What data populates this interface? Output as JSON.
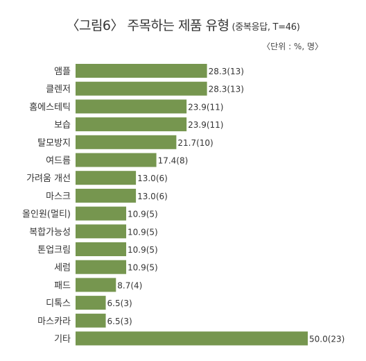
{
  "title": "〈그림6〉 주목하는 제품 유형",
  "title_note": "(중복응답, T=46)",
  "unit_note": "〈단위 : %, 명〉",
  "colors": {
    "bar": "#76964f",
    "text": "#333333"
  },
  "chart_data": {
    "type": "bar",
    "orientation": "horizontal",
    "title": "〈그림6〉 주목하는 제품 유형",
    "categories": [
      "앰플",
      "클렌저",
      "홈에스테틱",
      "보습",
      "탈모방지",
      "여드름",
      "가려움 개선",
      "마스크",
      "올인원(멀티)",
      "복합가능성",
      "톤업크림",
      "세럼",
      "패드",
      "디톡스",
      "마스카라",
      "기타"
    ],
    "values": [
      28.3,
      28.3,
      23.9,
      23.9,
      21.7,
      17.4,
      13.0,
      13.0,
      10.9,
      10.9,
      10.9,
      10.9,
      8.7,
      6.5,
      6.5,
      50.0
    ],
    "counts": [
      13,
      13,
      11,
      11,
      10,
      8,
      6,
      6,
      5,
      5,
      5,
      5,
      4,
      3,
      3,
      23
    ],
    "data_labels": [
      "28.3(13)",
      "28.3(13)",
      "23.9(11)",
      "23.9(11)",
      "21.7(10)",
      "17.4(8)",
      "13.0(6)",
      "13.0(6)",
      "10.9(5)",
      "10.9(5)",
      "10.9(5)",
      "10.9(5)",
      "8.7(4)",
      "6.5(3)",
      "6.5(3)",
      "50.0(23)"
    ],
    "xlim": [
      0,
      50
    ],
    "grid": false,
    "legend": "none"
  }
}
